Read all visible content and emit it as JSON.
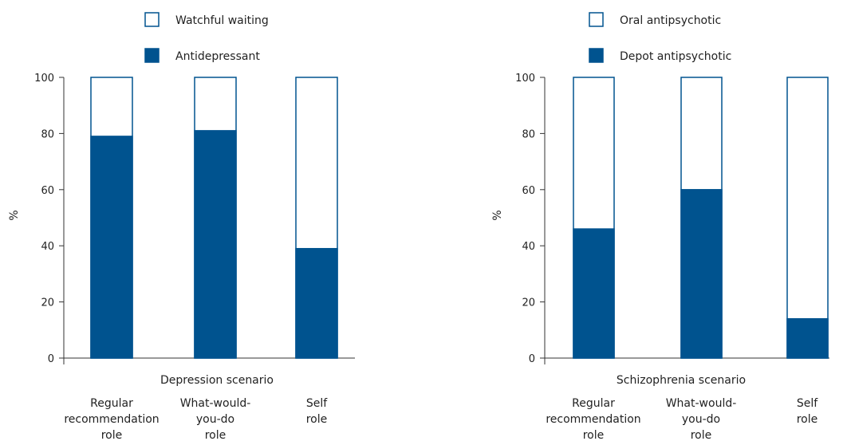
{
  "colors": {
    "fill": "#00538f",
    "empty": "#ffffff",
    "axis": "#333333"
  },
  "chart_data": [
    {
      "type": "bar",
      "stacked": true,
      "xlabel": "Depression scenario",
      "ylabel": "%",
      "ylim": [
        0,
        100
      ],
      "yticks": [
        "0",
        "20",
        "40",
        "60",
        "80",
        "100"
      ],
      "categories": [
        [
          "Regular",
          "recommendation",
          "role"
        ],
        [
          "What-would-",
          "you-do",
          "role"
        ],
        [
          "Self",
          "role"
        ]
      ],
      "series": [
        {
          "name": "Antidepressant",
          "values": [
            79,
            81,
            39
          ]
        },
        {
          "name": "Watchful waiting",
          "values": [
            21,
            19,
            61
          ]
        }
      ],
      "legend": [
        {
          "label": "Watchful waiting",
          "style": "empty"
        },
        {
          "label": "Antidepressant",
          "style": "fill"
        }
      ],
      "legend_position": "top"
    },
    {
      "type": "bar",
      "stacked": true,
      "xlabel": "Schizophrenia scenario",
      "ylabel": "%",
      "ylim": [
        0,
        100
      ],
      "yticks": [
        "0",
        "20",
        "40",
        "60",
        "80",
        "100"
      ],
      "categories": [
        [
          "Regular",
          "recommendation",
          "role"
        ],
        [
          "What-would-",
          "you-do",
          "role"
        ],
        [
          "Self",
          "role"
        ]
      ],
      "series": [
        {
          "name": "Depot antipsychotic",
          "values": [
            46,
            60,
            14
          ]
        },
        {
          "name": "Oral antipsychotic",
          "values": [
            54,
            40,
            86
          ]
        }
      ],
      "legend": [
        {
          "label": "Oral antipsychotic",
          "style": "empty"
        },
        {
          "label": "Depot antipsychotic",
          "style": "fill"
        }
      ],
      "legend_position": "top"
    }
  ]
}
